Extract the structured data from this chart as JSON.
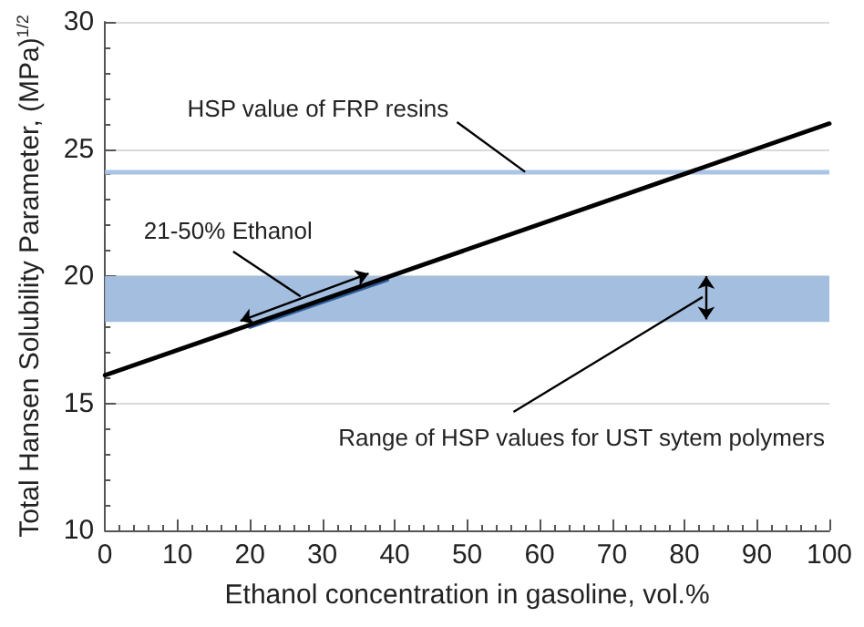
{
  "chart_data": {
    "type": "line",
    "xlabel": "Ethanol concentration in gasoline, vol.%",
    "ylabel": "Total Hansen Solubility Parameter, (MPa)$^{1/2}$",
    "series": [
      {
        "color": "#000000",
        "x": [
          0,
          100
        ],
        "values": [
          16.1,
          26
        ]
      },
      {
        "color": "#2f5d9a",
        "x": [
          20,
          39
        ],
        "values": [
          18.0,
          19.85
        ]
      }
    ],
    "xlim": [
      0,
      100
    ],
    "xticks": [
      0,
      10,
      20,
      30,
      40,
      50,
      60,
      70,
      80,
      90,
      100
    ],
    "ylim": [
      10,
      30
    ],
    "yticks": [
      10,
      15,
      20,
      25,
      30
    ],
    "ref_lines": [
      {
        "axis": "y",
        "value": 24.1,
        "color": "#a9c4e4"
      }
    ],
    "bands": [
      {
        "axis": "y",
        "from": 18.2,
        "to": 20,
        "color": "#a4bedf"
      }
    ],
    "annotations": [
      {
        "text": "HSP value of FRP resins",
        "x": 58,
        "y": 24.1
      },
      {
        "text": "21-50% Ethanol",
        "x": 27,
        "y": 19.2
      },
      "Range of HSP values for UST sytem polymers"
    ],
    "grid": "y",
    "marker": "none",
    "line_style": "solid"
  }
}
